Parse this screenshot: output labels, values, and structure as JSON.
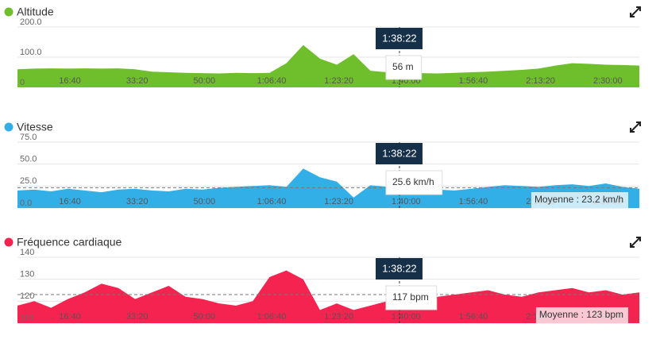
{
  "chart_data": [
    {
      "type": "area",
      "title": "Altitude",
      "color": "#6fbe2c",
      "x": [
        220,
        470,
        720,
        970,
        1220,
        1470,
        1720,
        1970,
        2220,
        2470,
        2720,
        2970,
        3220,
        3470,
        3720,
        3970,
        4220,
        4470,
        4720,
        4970,
        5220,
        5470,
        5720,
        5970,
        6220,
        6470,
        6720,
        6970,
        7220,
        7470,
        7720,
        7970,
        8220,
        8470,
        8720,
        8970,
        9220,
        9470
      ],
      "values": [
        60,
        62,
        63,
        62,
        63,
        62,
        63,
        60,
        52,
        50,
        48,
        47,
        46,
        48,
        47,
        48,
        80,
        140,
        95,
        75,
        110,
        55,
        50,
        48,
        47,
        46,
        48,
        50,
        52,
        55,
        58,
        62,
        72,
        80,
        78,
        75,
        74,
        72
      ],
      "xlim": [
        220,
        9470
      ],
      "xticks": [
        {
          "value": 1000,
          "label": "16:40"
        },
        {
          "value": 2000,
          "label": "33:20"
        },
        {
          "value": 3000,
          "label": "50:00"
        },
        {
          "value": 4000,
          "label": "1:06:40"
        },
        {
          "value": 5000,
          "label": "1:23:20"
        },
        {
          "value": 6000,
          "label": "1:40:00"
        },
        {
          "value": 7000,
          "label": "1:56:40"
        },
        {
          "value": 8000,
          "label": "2:13:20"
        },
        {
          "value": 9000,
          "label": "2:30:00"
        }
      ],
      "ylim": [
        0,
        200
      ],
      "yticks": [
        0,
        {
          "value": 100,
          "label": "100.0"
        },
        {
          "value": 200,
          "label": "200.0"
        }
      ],
      "cursor": {
        "value": 5902,
        "label": "1:38:22"
      },
      "tooltip": {
        "value": 56,
        "label": "56 m"
      }
    },
    {
      "type": "area",
      "title": "Vitesse",
      "color": "#33afe8",
      "x": [
        220,
        470,
        720,
        970,
        1220,
        1470,
        1720,
        1970,
        2220,
        2470,
        2720,
        2970,
        3220,
        3470,
        3720,
        3970,
        4220,
        4470,
        4720,
        4970,
        5220,
        5470,
        5720,
        5970,
        6220,
        6470,
        6720,
        6970,
        7220,
        7470,
        7720,
        7970,
        8220,
        8470,
        8720,
        8970,
        9220,
        9470
      ],
      "values": [
        20,
        21,
        19,
        22,
        20,
        18,
        21,
        22,
        20,
        19,
        22,
        21,
        23,
        24,
        25,
        26,
        24,
        45,
        35,
        30,
        12,
        26,
        24,
        22,
        23,
        21,
        20,
        22,
        24,
        26,
        25,
        24,
        26,
        27,
        25,
        28,
        24,
        22
      ],
      "xlim": [
        220,
        9470
      ],
      "xticks": [
        {
          "value": 1000,
          "label": "16:40"
        },
        {
          "value": 2000,
          "label": "33:20"
        },
        {
          "value": 3000,
          "label": "50:00"
        },
        {
          "value": 4000,
          "label": "1:06:40"
        },
        {
          "value": 5000,
          "label": "1:23:20"
        },
        {
          "value": 6000,
          "label": "1:40:00"
        },
        {
          "value": 7000,
          "label": "1:56:40"
        },
        {
          "value": 8000,
          "label": "2:13:20"
        },
        {
          "value": 9000,
          "label": "2:30:00"
        }
      ],
      "ylim": [
        0,
        75
      ],
      "yticks": [
        {
          "value": 0,
          "label": "0.0"
        },
        {
          "value": 25,
          "label": "25.0"
        },
        {
          "value": 50,
          "label": "50.0"
        },
        {
          "value": 75,
          "label": "75.0"
        }
      ],
      "cursor": {
        "value": 5902,
        "label": "1:38:22"
      },
      "tooltip": {
        "value": 25.6,
        "label": "25.6 km/h"
      },
      "average": {
        "value": 23.2,
        "label": "Moyenne : 23.2 km/h"
      }
    },
    {
      "type": "area",
      "title": "Fréquence cardiaque",
      "color": "#f5234f",
      "x": [
        220,
        470,
        720,
        970,
        1220,
        1470,
        1720,
        1970,
        2220,
        2470,
        2720,
        2970,
        3220,
        3470,
        3720,
        3970,
        4220,
        4470,
        4720,
        4970,
        5220,
        5470,
        5720,
        5970,
        6220,
        6470,
        6720,
        6970,
        7220,
        7470,
        7720,
        7970,
        8220,
        8470,
        8720,
        8970,
        9220,
        9470
      ],
      "values": [
        118,
        120,
        117,
        121,
        124,
        128,
        126,
        121,
        124,
        127,
        122,
        121,
        119,
        118,
        120,
        131,
        134,
        130,
        116,
        119,
        116,
        118,
        120,
        119,
        121,
        122,
        123,
        124,
        125,
        123,
        122,
        124,
        125,
        126,
        124,
        125,
        123,
        124
      ],
      "xlim": [
        220,
        9470
      ],
      "xticks": [
        {
          "value": 1000,
          "label": "16:40"
        },
        {
          "value": 2000,
          "label": "33:20"
        },
        {
          "value": 3000,
          "label": "50:00"
        },
        {
          "value": 4000,
          "label": "1:06:40"
        },
        {
          "value": 5000,
          "label": "1:23:20"
        },
        {
          "value": 6000,
          "label": "1:40:00"
        },
        {
          "value": 7000,
          "label": "1:56:40"
        },
        {
          "value": 8000,
          "label": "2:13:20"
        },
        {
          "value": 9000,
          "label": "2:30:00"
        }
      ],
      "ylim": [
        110,
        140
      ],
      "yticks": [
        110,
        120,
        130,
        140
      ],
      "cursor": {
        "value": 5902,
        "label": "1:38:22"
      },
      "tooltip": {
        "value": 117,
        "label": "117 bpm"
      },
      "average": {
        "value": 123,
        "label": "Moyenne : 123 bpm"
      }
    }
  ]
}
